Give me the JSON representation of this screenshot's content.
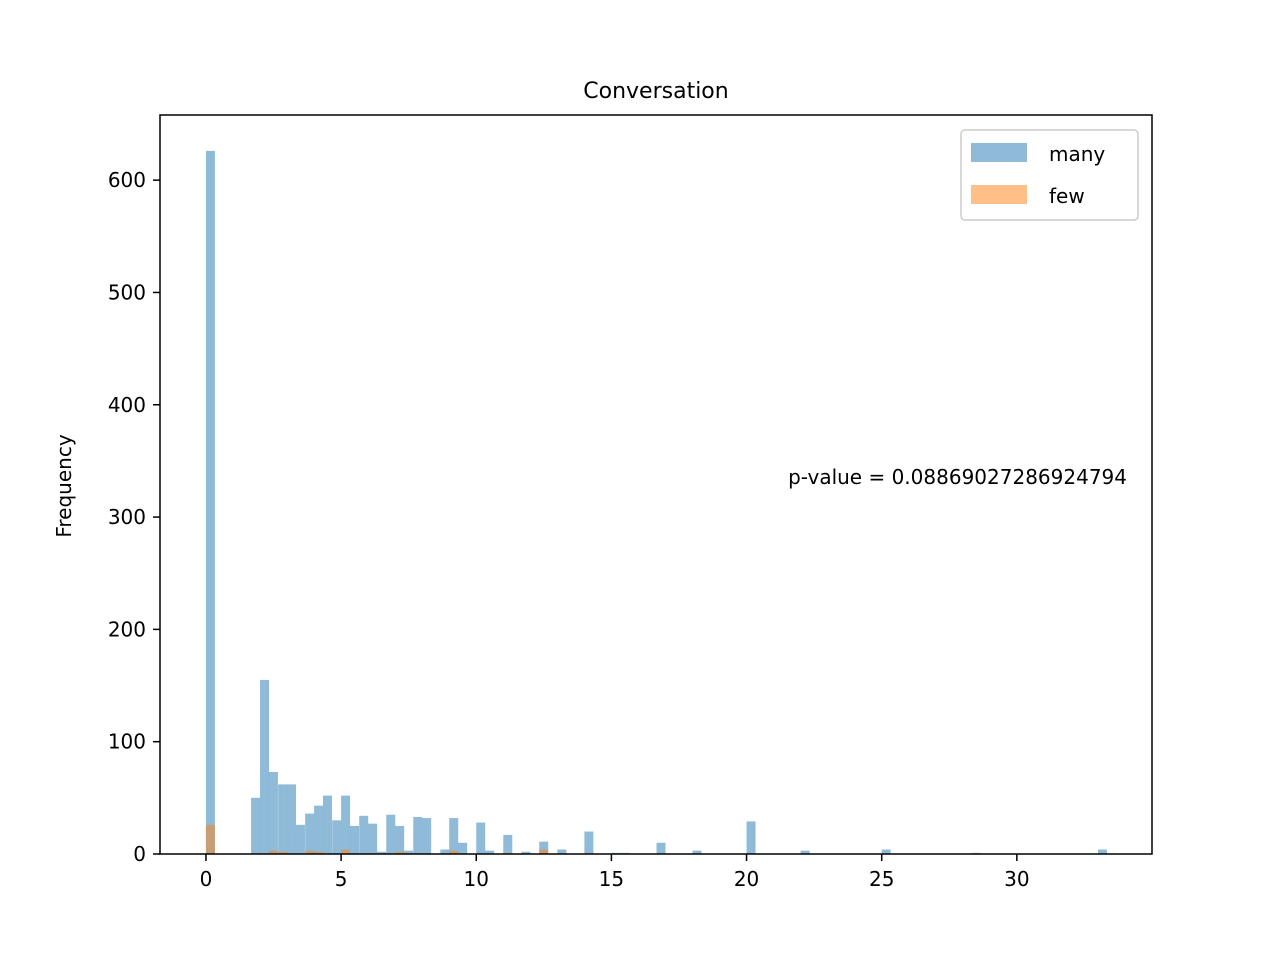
{
  "chart_data": {
    "type": "bar",
    "title": "Conversation",
    "xlabel": "",
    "ylabel": "Frequency",
    "xlim": [
      -1.7,
      35
    ],
    "ylim": [
      0,
      658
    ],
    "xticks": [
      0,
      5,
      10,
      15,
      20,
      25,
      30
    ],
    "yticks": [
      0,
      100,
      200,
      300,
      400,
      500,
      600
    ],
    "bin_width": 0.333,
    "legend_position": "top-right",
    "annotation": "p-value = 0.08869027286924794",
    "series": [
      {
        "name": "many",
        "color": "#1f77b4",
        "opacity": 0.5,
        "bins": [
          {
            "x": 0.0,
            "y": 626
          },
          {
            "x": 1.67,
            "y": 50
          },
          {
            "x": 2.0,
            "y": 155
          },
          {
            "x": 2.33,
            "y": 73
          },
          {
            "x": 2.67,
            "y": 62
          },
          {
            "x": 3.0,
            "y": 62
          },
          {
            "x": 3.33,
            "y": 26
          },
          {
            "x": 3.67,
            "y": 36
          },
          {
            "x": 4.0,
            "y": 43
          },
          {
            "x": 4.33,
            "y": 52
          },
          {
            "x": 4.67,
            "y": 30
          },
          {
            "x": 5.0,
            "y": 52
          },
          {
            "x": 5.33,
            "y": 25
          },
          {
            "x": 5.67,
            "y": 34
          },
          {
            "x": 6.0,
            "y": 27
          },
          {
            "x": 6.33,
            "y": 2
          },
          {
            "x": 6.67,
            "y": 35
          },
          {
            "x": 7.0,
            "y": 25
          },
          {
            "x": 7.33,
            "y": 3
          },
          {
            "x": 7.67,
            "y": 33
          },
          {
            "x": 8.0,
            "y": 32
          },
          {
            "x": 8.67,
            "y": 4
          },
          {
            "x": 9.0,
            "y": 32
          },
          {
            "x": 9.33,
            "y": 10
          },
          {
            "x": 10.0,
            "y": 28
          },
          {
            "x": 10.33,
            "y": 3
          },
          {
            "x": 11.0,
            "y": 17
          },
          {
            "x": 11.67,
            "y": 2
          },
          {
            "x": 12.33,
            "y": 11
          },
          {
            "x": 13.0,
            "y": 4
          },
          {
            "x": 14.0,
            "y": 20
          },
          {
            "x": 15.0,
            "y": 1
          },
          {
            "x": 15.33,
            "y": 1
          },
          {
            "x": 16.67,
            "y": 10
          },
          {
            "x": 18.0,
            "y": 3
          },
          {
            "x": 20.0,
            "y": 29
          },
          {
            "x": 22.0,
            "y": 3
          },
          {
            "x": 25.0,
            "y": 4
          },
          {
            "x": 28.33,
            "y": 1
          },
          {
            "x": 33.0,
            "y": 4
          }
        ]
      },
      {
        "name": "few",
        "color": "#ff7f0e",
        "opacity": 0.5,
        "bins": [
          {
            "x": 0.0,
            "y": 26
          },
          {
            "x": 2.33,
            "y": 3
          },
          {
            "x": 2.67,
            "y": 2
          },
          {
            "x": 3.67,
            "y": 3
          },
          {
            "x": 4.0,
            "y": 2
          },
          {
            "x": 5.0,
            "y": 4
          },
          {
            "x": 7.0,
            "y": 2
          },
          {
            "x": 7.33,
            "y": 1
          },
          {
            "x": 9.0,
            "y": 3
          },
          {
            "x": 11.0,
            "y": 1
          },
          {
            "x": 12.33,
            "y": 4
          }
        ]
      }
    ]
  }
}
